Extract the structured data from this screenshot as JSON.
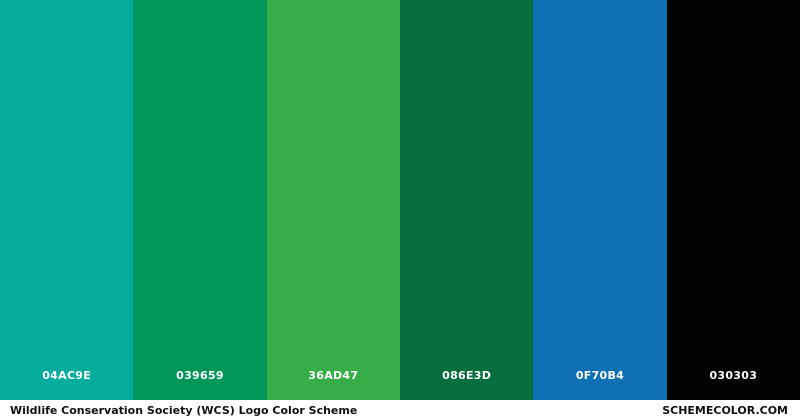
{
  "title": "Wildlife Conservation Society (WCS) Logo Color Scheme",
  "site": "SCHEMECOLOR.COM",
  "swatches": [
    {
      "label": "04AC9E",
      "color": "#04ac9e"
    },
    {
      "label": "039659",
      "color": "#039659"
    },
    {
      "label": "36AD47",
      "color": "#36ad47"
    },
    {
      "label": "086E3D",
      "color": "#086e3d"
    },
    {
      "label": "0F70B4",
      "color": "#0f70b4"
    },
    {
      "label": "030303",
      "color": "#030303"
    }
  ]
}
